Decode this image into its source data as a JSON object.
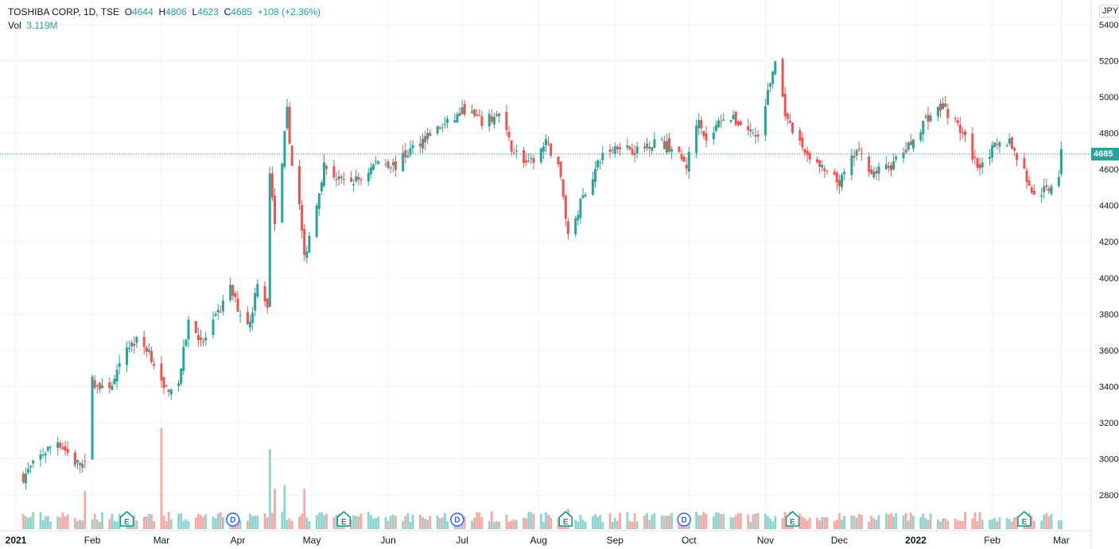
{
  "legend": {
    "symbol": "TOSHIBA CORP, 1D, TSE",
    "o_label": "O",
    "open": "4644",
    "h_label": "H",
    "high": "4806",
    "l_label": "L",
    "low": "4623",
    "c_label": "C",
    "close": "4685",
    "change": "+108 (+2.36%)",
    "vol_label": "Vol",
    "volume": "3.119M"
  },
  "currency": "JPY",
  "last_price_label": "4685",
  "colors": {
    "up": "#26a69a",
    "down": "#ef5350",
    "vol_up": "#8fd4cd",
    "vol_down": "#f7a9a7",
    "grid": "#f0f3fa",
    "dividend": "#2962ff",
    "earnings": "#089981"
  },
  "chart_data": {
    "type": "candlestick",
    "symbol": "TOSHIBA CORP",
    "interval": "1D",
    "exchange": "TSE",
    "currency": "JPY",
    "ylim": [
      2650,
      5450
    ],
    "y_ticks": [
      2800,
      3000,
      3200,
      3400,
      3600,
      3800,
      4000,
      4200,
      4400,
      4600,
      4800,
      5000,
      5200,
      5400
    ],
    "x_labels": [
      "2021",
      "Feb",
      "Mar",
      "Apr",
      "May",
      "Jun",
      "Jul",
      "Aug",
      "Sep",
      "Oct",
      "Nov",
      "Dec",
      "2022",
      "Feb",
      "Mar"
    ],
    "last_price": 4685,
    "price_anchors": [
      {
        "date": "2021-01-04",
        "close": 2900
      },
      {
        "date": "2021-01-12",
        "close": 3030
      },
      {
        "date": "2021-01-18",
        "close": 3100
      },
      {
        "date": "2021-01-25",
        "close": 2980
      },
      {
        "date": "2021-01-29",
        "close": 2960
      },
      {
        "date": "2021-02-01",
        "close": 3430
      },
      {
        "date": "2021-02-05",
        "close": 3380
      },
      {
        "date": "2021-02-10",
        "close": 3430
      },
      {
        "date": "2021-02-15",
        "close": 3620
      },
      {
        "date": "2021-02-19",
        "close": 3650
      },
      {
        "date": "2021-02-24",
        "close": 3600
      },
      {
        "date": "2021-03-02",
        "close": 3380
      },
      {
        "date": "2021-03-08",
        "close": 3420
      },
      {
        "date": "2021-03-12",
        "close": 3760
      },
      {
        "date": "2021-03-18",
        "close": 3640
      },
      {
        "date": "2021-03-24",
        "close": 3800
      },
      {
        "date": "2021-03-29",
        "close": 3940
      },
      {
        "date": "2021-04-02",
        "close": 3800
      },
      {
        "date": "2021-04-06",
        "close": 3750
      },
      {
        "date": "2021-04-09",
        "close": 3990
      },
      {
        "date": "2021-04-13",
        "close": 3850
      },
      {
        "date": "2021-04-14",
        "close": 4560
      },
      {
        "date": "2021-04-16",
        "close": 4280
      },
      {
        "date": "2021-04-19",
        "close": 4650
      },
      {
        "date": "2021-04-21",
        "close": 4920
      },
      {
        "date": "2021-04-23",
        "close": 4620
      },
      {
        "date": "2021-04-26",
        "close": 4400
      },
      {
        "date": "2021-04-28",
        "close": 4100
      },
      {
        "date": "2021-05-06",
        "close": 4620
      },
      {
        "date": "2021-05-14",
        "close": 4520
      },
      {
        "date": "2021-05-21",
        "close": 4550
      },
      {
        "date": "2021-05-28",
        "close": 4650
      },
      {
        "date": "2021-06-04",
        "close": 4620
      },
      {
        "date": "2021-06-11",
        "close": 4720
      },
      {
        "date": "2021-06-18",
        "close": 4800
      },
      {
        "date": "2021-06-25",
        "close": 4850
      },
      {
        "date": "2021-07-02",
        "close": 4930
      },
      {
        "date": "2021-07-09",
        "close": 4860
      },
      {
        "date": "2021-07-16",
        "close": 4900
      },
      {
        "date": "2021-07-21",
        "close": 4720
      },
      {
        "date": "2021-07-28",
        "close": 4620
      },
      {
        "date": "2021-08-04",
        "close": 4740
      },
      {
        "date": "2021-08-09",
        "close": 4640
      },
      {
        "date": "2021-08-13",
        "close": 4240
      },
      {
        "date": "2021-08-20",
        "close": 4480
      },
      {
        "date": "2021-08-27",
        "close": 4680
      },
      {
        "date": "2021-09-03",
        "close": 4740
      },
      {
        "date": "2021-09-10",
        "close": 4700
      },
      {
        "date": "2021-09-17",
        "close": 4760
      },
      {
        "date": "2021-09-24",
        "close": 4720
      },
      {
        "date": "2021-09-30",
        "close": 4620
      },
      {
        "date": "2021-10-05",
        "close": 4900
      },
      {
        "date": "2021-10-08",
        "close": 4750
      },
      {
        "date": "2021-10-15",
        "close": 4900
      },
      {
        "date": "2021-10-22",
        "close": 4850
      },
      {
        "date": "2021-10-29",
        "close": 4780
      },
      {
        "date": "2021-11-05",
        "close": 5200
      },
      {
        "date": "2021-11-10",
        "close": 4850
      },
      {
        "date": "2021-11-17",
        "close": 4700
      },
      {
        "date": "2021-11-24",
        "close": 4600
      },
      {
        "date": "2021-12-01",
        "close": 4520
      },
      {
        "date": "2021-12-08",
        "close": 4700
      },
      {
        "date": "2021-12-15",
        "close": 4580
      },
      {
        "date": "2021-12-22",
        "close": 4620
      },
      {
        "date": "2021-12-29",
        "close": 4720
      },
      {
        "date": "2022-01-05",
        "close": 4880
      },
      {
        "date": "2022-01-12",
        "close": 4950
      },
      {
        "date": "2022-01-19",
        "close": 4820
      },
      {
        "date": "2022-01-26",
        "close": 4620
      },
      {
        "date": "2022-02-02",
        "close": 4720
      },
      {
        "date": "2022-02-08",
        "close": 4760
      },
      {
        "date": "2022-02-14",
        "close": 4580
      },
      {
        "date": "2022-02-18",
        "close": 4450
      },
      {
        "date": "2022-02-24",
        "close": 4500
      },
      {
        "date": "2022-02-28",
        "close": 4580
      },
      {
        "date": "2022-03-01",
        "close": 4685
      }
    ],
    "volume_spikes": [
      {
        "date": "2021-03-01",
        "relative": 8.5
      },
      {
        "date": "2021-04-14",
        "relative": 6.7
      },
      {
        "date": "2021-04-16",
        "relative": 3.4
      },
      {
        "date": "2021-04-20",
        "relative": 3.7
      },
      {
        "date": "2021-04-28",
        "relative": 3.4
      },
      {
        "date": "2021-01-29",
        "relative": 3.2
      },
      {
        "date": "2021-08-13",
        "relative": 1.7
      }
    ],
    "events": [
      {
        "type": "E",
        "date": "2021-02-15"
      },
      {
        "type": "D",
        "date": "2021-03-30"
      },
      {
        "type": "E",
        "date": "2021-05-14"
      },
      {
        "type": "D",
        "date": "2021-06-29"
      },
      {
        "type": "E",
        "date": "2021-08-12"
      },
      {
        "type": "D",
        "date": "2021-09-29"
      },
      {
        "type": "E",
        "date": "2021-11-12"
      },
      {
        "type": "E",
        "date": "2022-02-14"
      }
    ]
  }
}
